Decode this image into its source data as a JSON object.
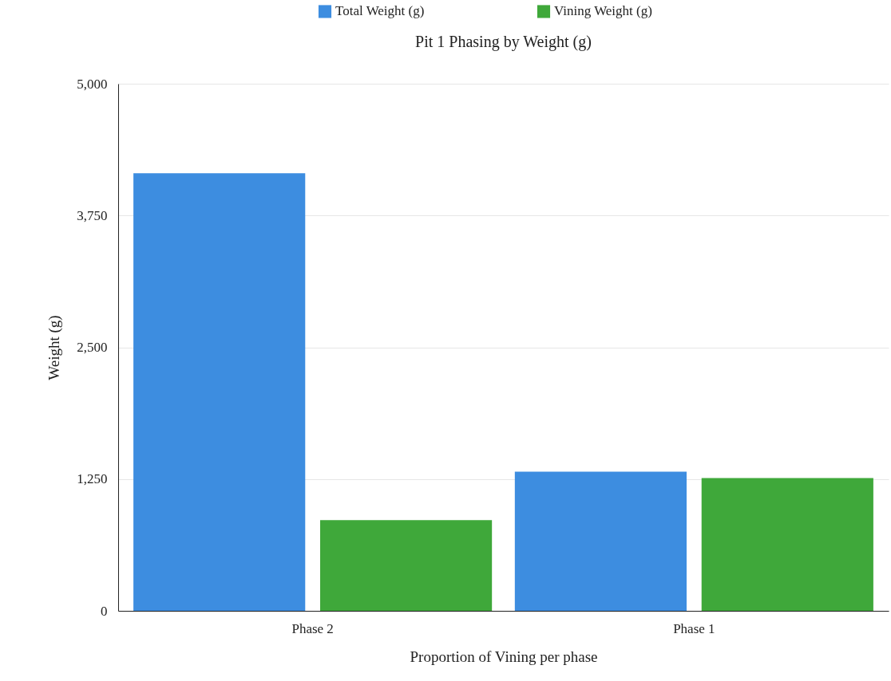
{
  "chart_data": {
    "type": "bar",
    "title": "Pit 1 Phasing by Weight (g)",
    "xlabel": "Proportion of Vining per phase",
    "ylabel": "Weight (g)",
    "categories": [
      "Phase 2",
      "Phase 1"
    ],
    "series": [
      {
        "name": "Total Weight (g)",
        "color": "#3d8de0",
        "values": [
          4150,
          1320
        ]
      },
      {
        "name": "Vining Weight (g)",
        "color": "#3fa83a",
        "values": [
          860,
          1260
        ]
      }
    ],
    "ylim": [
      0,
      5000
    ],
    "yticks": [
      0,
      {
        "value": 1250,
        "label": "1,250"
      },
      {
        "value": 2500,
        "label": "2,500"
      },
      {
        "value": 3750,
        "label": "3,750"
      },
      {
        "value": 5000,
        "label": "5,000"
      }
    ],
    "grid": "y",
    "legend": "top"
  }
}
